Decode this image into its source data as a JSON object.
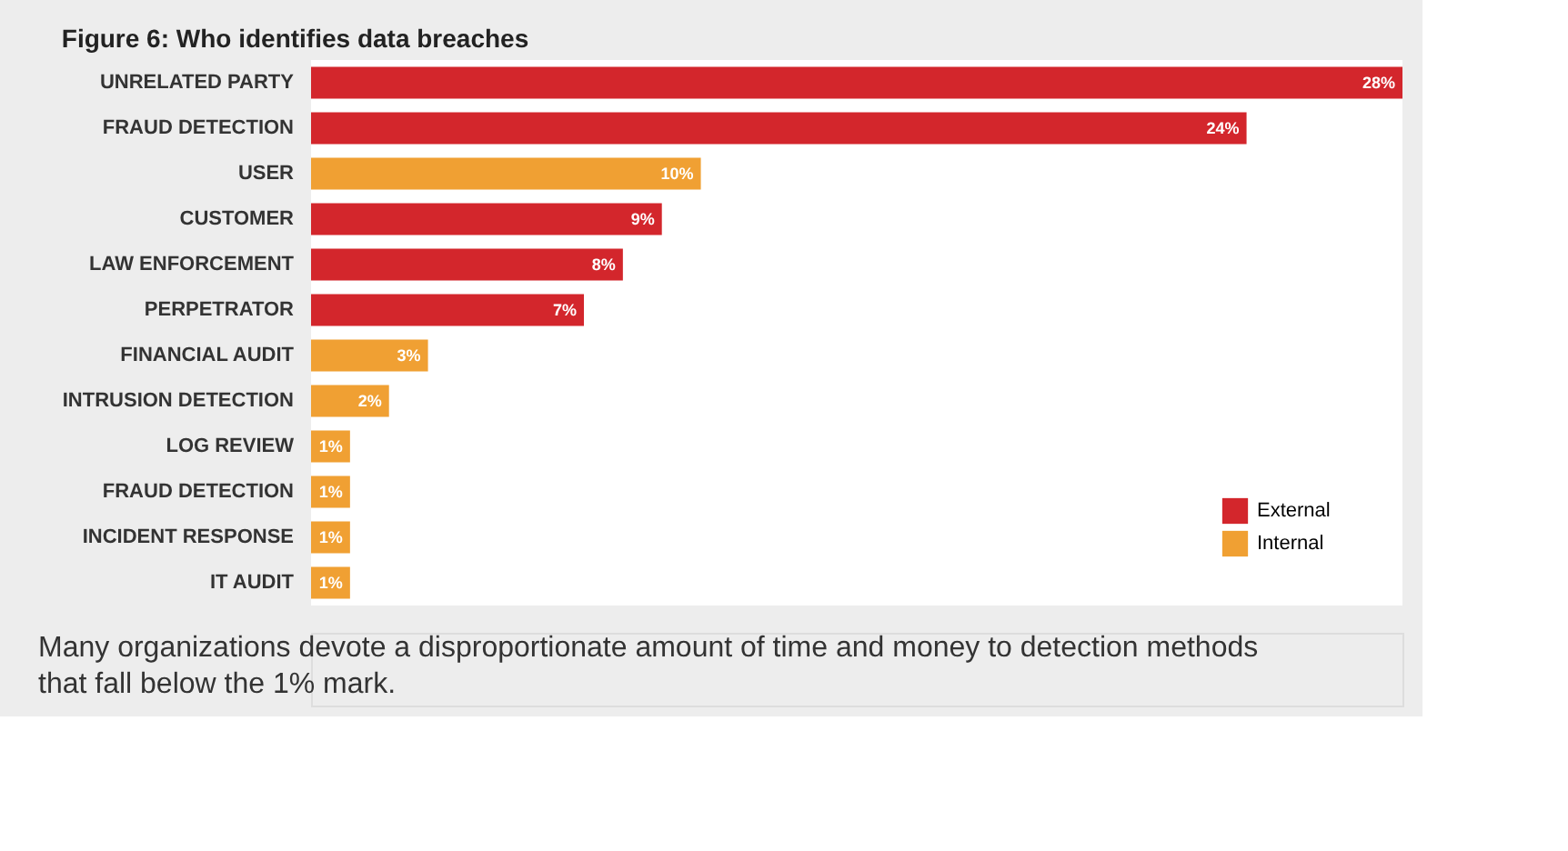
{
  "chart_data": {
    "type": "bar",
    "orientation": "horizontal",
    "title": "Figure 6: Who identifies data breaches",
    "categories": [
      "UNRELATED PARTY",
      "FRAUD DETECTION",
      "USER",
      "CUSTOMER",
      "LAW ENFORCEMENT",
      "PERPETRATOR",
      "FINANCIAL AUDIT",
      "INTRUSION DETECTION",
      "LOG REVIEW",
      "FRAUD DETECTION",
      "INCIDENT RESPONSE",
      "IT AUDIT"
    ],
    "series": [
      {
        "name": "External",
        "color": "#d3262c",
        "values": [
          28,
          24,
          null,
          9,
          8,
          7,
          null,
          null,
          null,
          null,
          null,
          null
        ],
        "value_labels": [
          "28%",
          "24%",
          null,
          "9%",
          "8%",
          "7%",
          null,
          null,
          null,
          null,
          null,
          null
        ]
      },
      {
        "name": "Internal",
        "color": "#f0a033",
        "values": [
          null,
          null,
          10,
          null,
          null,
          null,
          3,
          2,
          1,
          1,
          1,
          1
        ],
        "value_labels": [
          null,
          null,
          "10%",
          null,
          null,
          null,
          "3%",
          "2%",
          "1%",
          "1%",
          "1%",
          "1%"
        ]
      }
    ],
    "legend": "bottom right",
    "grid": false,
    "annotations": [
      "Many organizations devote a disproportionate amount of time and money to detection methods that fall below the 1% mark."
    ]
  }
}
